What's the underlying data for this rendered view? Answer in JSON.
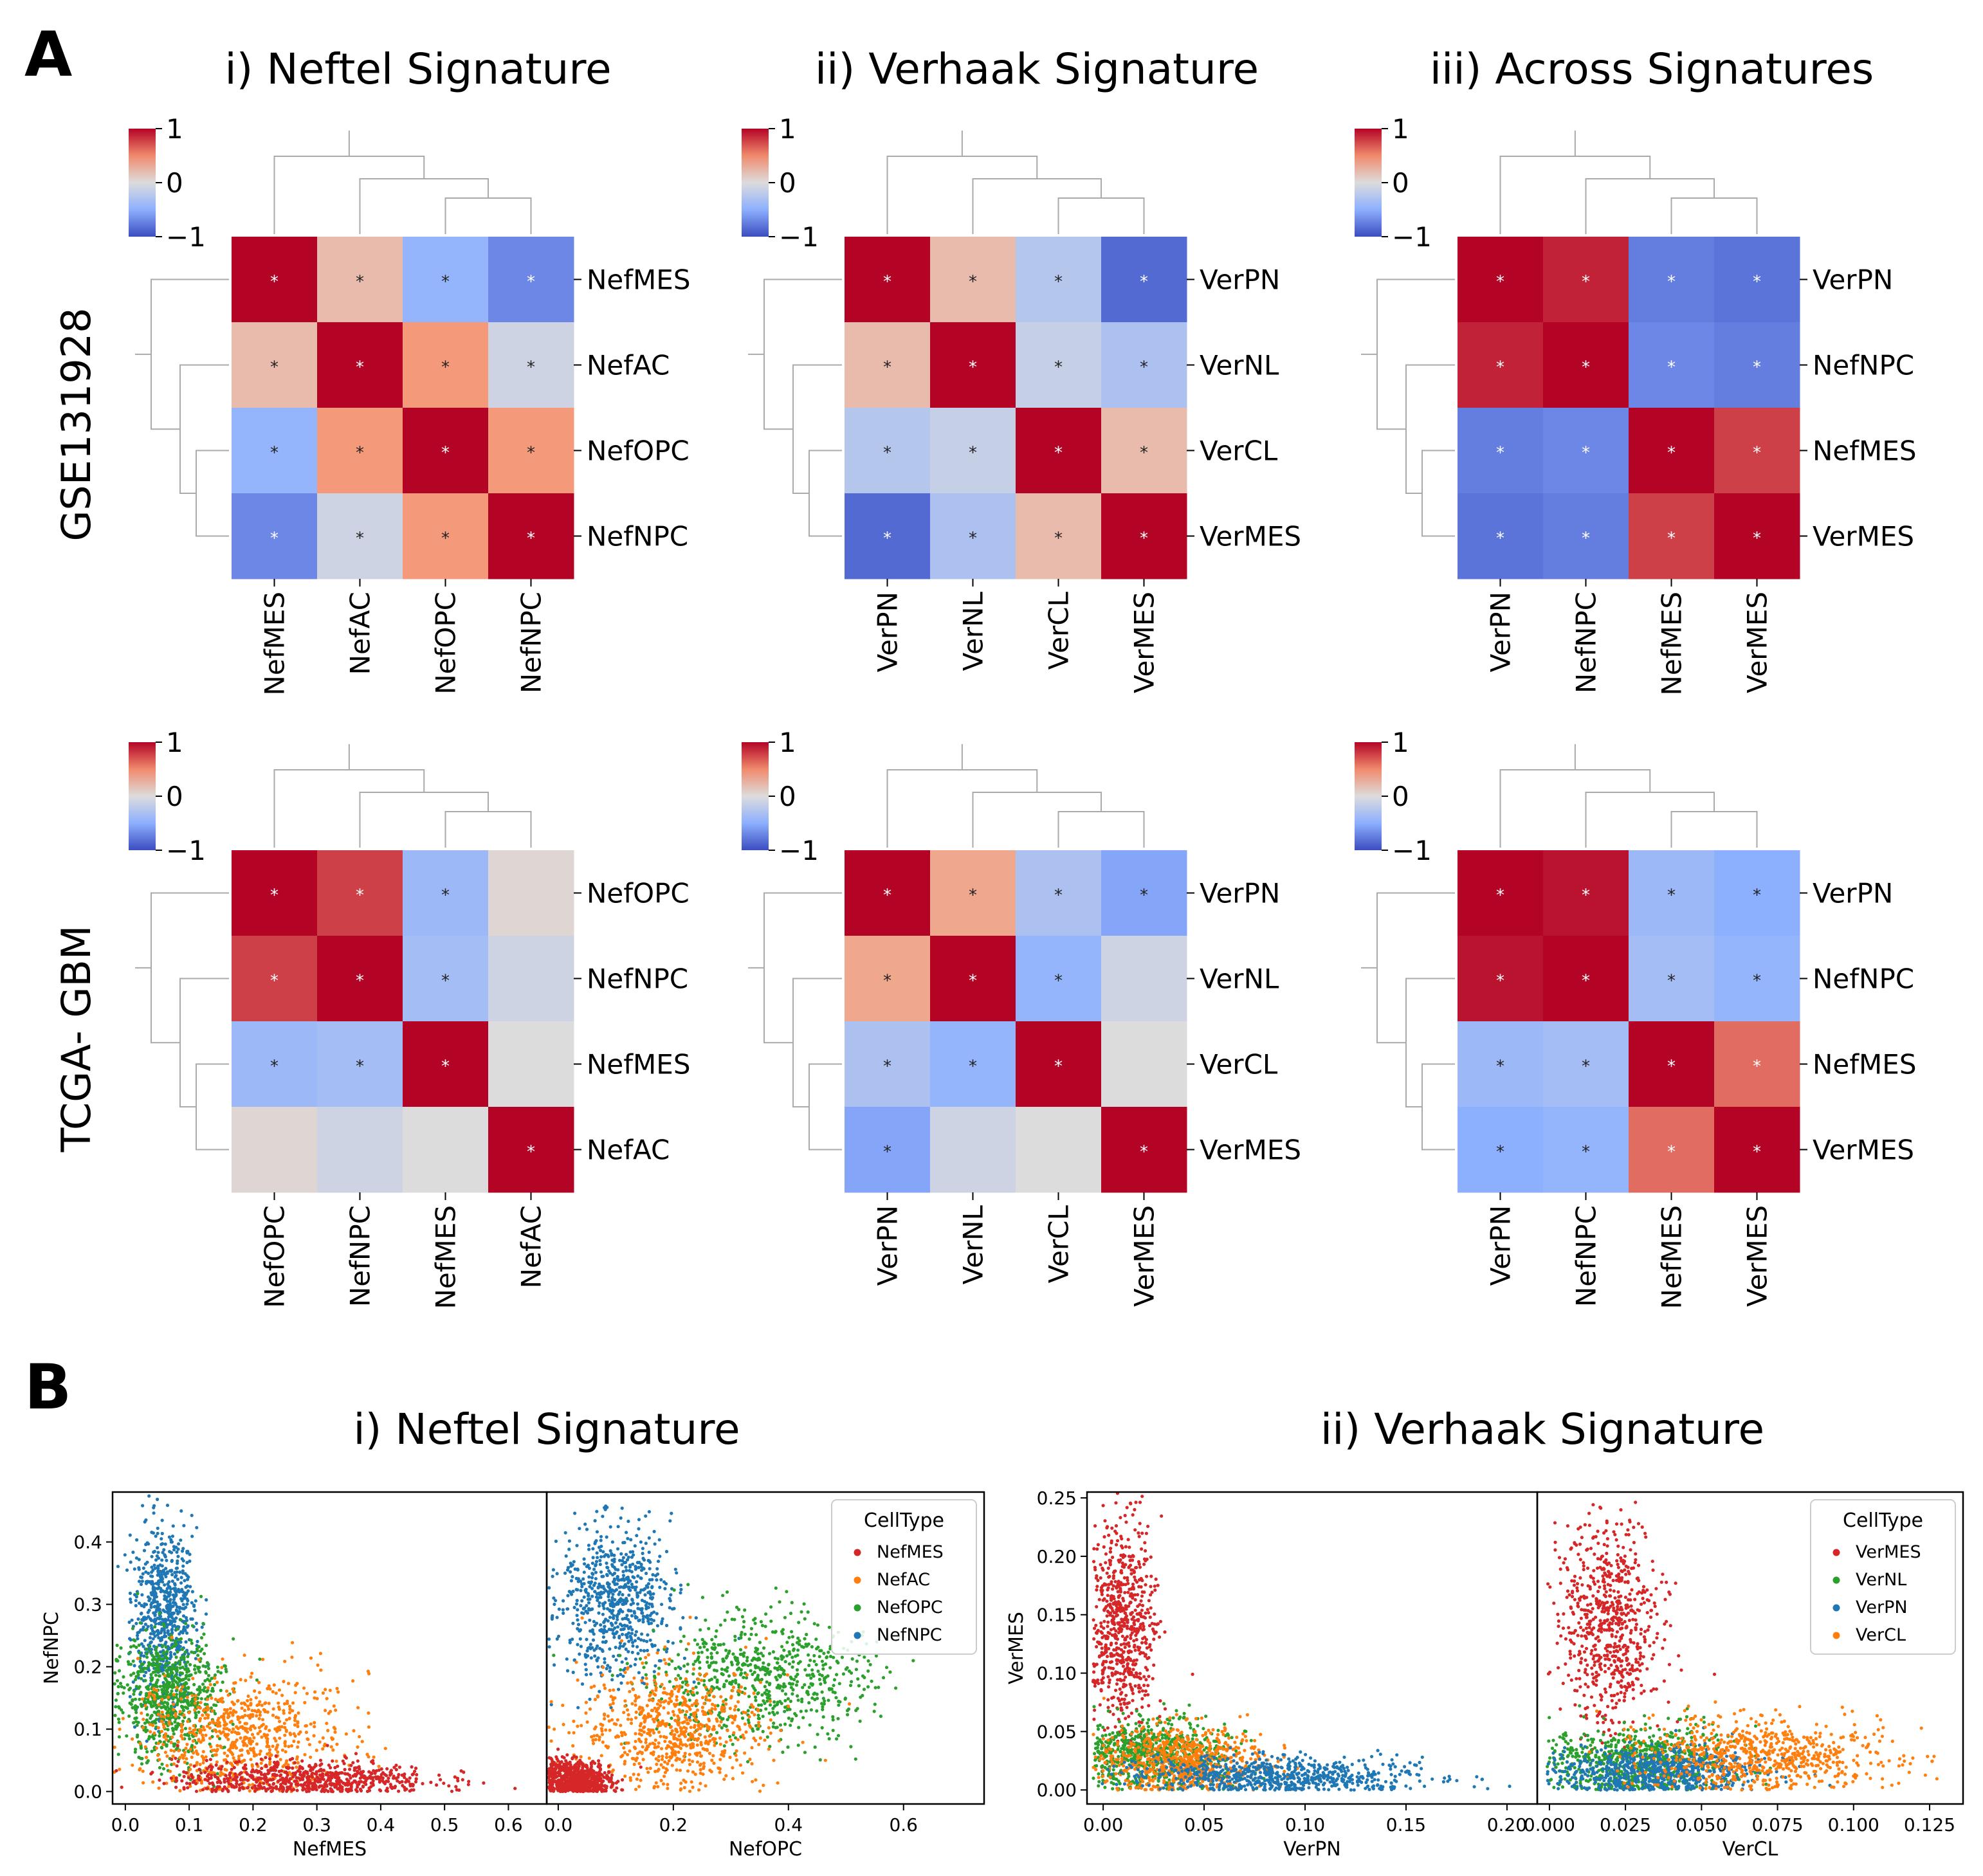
{
  "panel_labels": {
    "a": "A",
    "b": "B"
  },
  "section_a": {
    "col_titles": [
      "i) Neftel Signature",
      "ii) Verhaak Signature",
      "iii) Across Signatures"
    ],
    "row_labels": [
      "GSE131928",
      "TCGA- GBM"
    ]
  },
  "section_b": {
    "titles": [
      "i) Neftel Signature",
      "ii) Verhaak Signature"
    ]
  },
  "colors": {
    "red": "#d62728",
    "orange": "#ff7f0e",
    "green": "#2ca02c",
    "blue": "#1f77b4"
  },
  "chart_data": [
    {
      "type": "heatmap",
      "name": "GSE131928 Neftel",
      "labels": [
        "NefMES",
        "NefAC",
        "NefOPC",
        "NefNPC"
      ],
      "values": [
        [
          1,
          0.25,
          -0.45,
          -0.7
        ],
        [
          0.25,
          1,
          0.5,
          -0.1
        ],
        [
          -0.45,
          0.5,
          1,
          0.5
        ],
        [
          -0.7,
          -0.1,
          0.5,
          1
        ]
      ],
      "stars": [
        [
          1,
          1,
          1,
          1
        ],
        [
          1,
          1,
          1,
          1
        ],
        [
          1,
          1,
          1,
          1
        ],
        [
          1,
          1,
          1,
          1
        ]
      ],
      "vmin": -1,
      "vmax": 1,
      "colorbar_ticks": [
        "1",
        "0",
        "−1"
      ]
    },
    {
      "type": "heatmap",
      "name": "GSE131928 Verhaak",
      "labels": [
        "VerPN",
        "VerNL",
        "VerCL",
        "VerMES"
      ],
      "values": [
        [
          1,
          0.25,
          -0.25,
          -0.85
        ],
        [
          0.25,
          1,
          -0.15,
          -0.3
        ],
        [
          -0.25,
          -0.15,
          1,
          0.25
        ],
        [
          -0.85,
          -0.3,
          0.25,
          1
        ]
      ],
      "stars": [
        [
          1,
          1,
          1,
          1
        ],
        [
          1,
          1,
          1,
          1
        ],
        [
          1,
          1,
          1,
          1
        ],
        [
          1,
          1,
          1,
          1
        ]
      ],
      "vmin": -1,
      "vmax": 1,
      "colorbar_ticks": [
        "1",
        "0",
        "−1"
      ]
    },
    {
      "type": "heatmap",
      "name": "GSE131928 Across",
      "labels": [
        "VerPN",
        "NefNPC",
        "NefMES",
        "VerMES"
      ],
      "values": [
        [
          1,
          0.9,
          -0.75,
          -0.8
        ],
        [
          0.9,
          1,
          -0.7,
          -0.75
        ],
        [
          -0.75,
          -0.7,
          1,
          0.8
        ],
        [
          -0.8,
          -0.75,
          0.8,
          1
        ]
      ],
      "stars": [
        [
          1,
          1,
          1,
          1
        ],
        [
          1,
          1,
          1,
          1
        ],
        [
          1,
          1,
          1,
          1
        ],
        [
          1,
          1,
          1,
          1
        ]
      ],
      "vmin": -1,
      "vmax": 1,
      "colorbar_ticks": [
        "1",
        "0",
        "−1"
      ]
    },
    {
      "type": "heatmap",
      "name": "TCGA-GBM Neftel",
      "labels": [
        "NefOPC",
        "NefNPC",
        "NefMES",
        "NefAC"
      ],
      "values": [
        [
          1,
          0.8,
          -0.4,
          0.05
        ],
        [
          0.8,
          1,
          -0.35,
          -0.1
        ],
        [
          -0.4,
          -0.35,
          1,
          0
        ],
        [
          0.05,
          -0.1,
          0,
          1
        ]
      ],
      "stars": [
        [
          1,
          1,
          1,
          0
        ],
        [
          1,
          1,
          1,
          0
        ],
        [
          1,
          1,
          1,
          0
        ],
        [
          0,
          0,
          0,
          1
        ]
      ],
      "vmin": -1,
      "vmax": 1,
      "colorbar_ticks": [
        "1",
        "0",
        "−1"
      ]
    },
    {
      "type": "heatmap",
      "name": "TCGA-GBM Verhaak",
      "labels": [
        "VerPN",
        "VerNL",
        "VerCL",
        "VerMES"
      ],
      "values": [
        [
          1,
          0.4,
          -0.3,
          -0.55
        ],
        [
          0.4,
          1,
          -0.45,
          -0.1
        ],
        [
          -0.3,
          -0.45,
          1,
          0
        ],
        [
          -0.55,
          -0.1,
          0,
          1
        ]
      ],
      "stars": [
        [
          1,
          1,
          1,
          1
        ],
        [
          1,
          1,
          1,
          0
        ],
        [
          1,
          1,
          1,
          0
        ],
        [
          1,
          0,
          0,
          1
        ]
      ],
      "vmin": -1,
      "vmax": 1,
      "colorbar_ticks": [
        "1",
        "0",
        "−1"
      ]
    },
    {
      "type": "heatmap",
      "name": "TCGA-GBM Across",
      "labels": [
        "VerPN",
        "NefNPC",
        "NefMES",
        "VerMES"
      ],
      "values": [
        [
          1,
          0.95,
          -0.4,
          -0.5
        ],
        [
          0.95,
          1,
          -0.35,
          -0.45
        ],
        [
          -0.4,
          -0.35,
          1,
          0.65
        ],
        [
          -0.5,
          -0.45,
          0.65,
          1
        ]
      ],
      "stars": [
        [
          1,
          1,
          1,
          1
        ],
        [
          1,
          1,
          1,
          1
        ],
        [
          1,
          1,
          1,
          1
        ],
        [
          1,
          1,
          1,
          1
        ]
      ],
      "vmin": -1,
      "vmax": 1,
      "colorbar_ticks": [
        "1",
        "0",
        "−1"
      ]
    },
    {
      "type": "scatter",
      "name": "Neftel NefNPC vs NefMES",
      "xlabel": "NefMES",
      "ylabel": "NefNPC",
      "xlim": [
        -0.02,
        0.66
      ],
      "ylim": [
        -0.02,
        0.48
      ],
      "xticks": [
        "0.0",
        "0.1",
        "0.2",
        "0.3",
        "0.4",
        "0.5",
        "0.6"
      ],
      "yticks": [
        "0.0",
        "0.1",
        "0.2",
        "0.3",
        "0.4"
      ],
      "clusters": [
        {
          "series": "NefNPC",
          "x_mean": 0.06,
          "x_sd": 0.025,
          "y_mean": 0.28,
          "y_sd": 0.07
        },
        {
          "series": "NefOPC",
          "x_mean": 0.07,
          "x_sd": 0.04,
          "y_mean": 0.15,
          "y_sd": 0.05
        },
        {
          "series": "NefAC",
          "x_mean": 0.18,
          "x_sd": 0.08,
          "y_mean": 0.09,
          "y_sd": 0.05
        },
        {
          "series": "NefMES",
          "x_mean": 0.28,
          "x_sd": 0.1,
          "y_mean": 0.02,
          "y_sd": 0.015
        }
      ]
    },
    {
      "type": "scatter",
      "name": "Neftel NefNPC vs NefOPC",
      "xlabel": "NefOPC",
      "ylabel": "",
      "xlim": [
        -0.02,
        0.74
      ],
      "ylim": [
        -0.02,
        0.48
      ],
      "xticks": [
        "0.0",
        "0.2",
        "0.4",
        "0.6"
      ],
      "yticks": [],
      "legend": {
        "title": "CellType",
        "entries": [
          "NefMES",
          "NefAC",
          "NefOPC",
          "NefNPC"
        ],
        "placement": "top-right"
      },
      "clusters": [
        {
          "series": "NefNPC",
          "x_mean": 0.1,
          "x_sd": 0.05,
          "y_mean": 0.3,
          "y_sd": 0.06
        },
        {
          "series": "NefOPC",
          "x_mean": 0.35,
          "x_sd": 0.1,
          "y_mean": 0.18,
          "y_sd": 0.05
        },
        {
          "series": "NefAC",
          "x_mean": 0.2,
          "x_sd": 0.08,
          "y_mean": 0.1,
          "y_sd": 0.05
        },
        {
          "series": "NefMES",
          "x_mean": 0.03,
          "x_sd": 0.03,
          "y_mean": 0.02,
          "y_sd": 0.015
        }
      ]
    },
    {
      "type": "scatter",
      "name": "Verhaak VerMES vs VerPN",
      "xlabel": "VerPN",
      "ylabel": "VerMES",
      "xlim": [
        -0.008,
        0.215
      ],
      "ylim": [
        -0.012,
        0.255
      ],
      "xticks": [
        "0.00",
        "0.05",
        "0.10",
        "0.15",
        "0.20"
      ],
      "yticks": [
        "0.00",
        "0.05",
        "0.10",
        "0.15",
        "0.20",
        "0.25"
      ],
      "clusters": [
        {
          "series": "VerMES",
          "x_mean": 0.01,
          "x_sd": 0.008,
          "y_mean": 0.14,
          "y_sd": 0.045
        },
        {
          "series": "VerNL",
          "x_mean": 0.025,
          "x_sd": 0.018,
          "y_mean": 0.03,
          "y_sd": 0.015
        },
        {
          "series": "VerCL",
          "x_mean": 0.04,
          "x_sd": 0.02,
          "y_mean": 0.025,
          "y_sd": 0.015
        },
        {
          "series": "VerPN",
          "x_mean": 0.09,
          "x_sd": 0.035,
          "y_mean": 0.012,
          "y_sd": 0.008
        }
      ]
    },
    {
      "type": "scatter",
      "name": "Verhaak VerMES vs VerCL",
      "xlabel": "VerCL",
      "ylabel": "",
      "xlim": [
        -0.004,
        0.136
      ],
      "ylim": [
        -0.012,
        0.255
      ],
      "xticks": [
        "0.000",
        "0.025",
        "0.050",
        "0.075",
        "0.100",
        "0.125"
      ],
      "yticks": [],
      "legend": {
        "title": "CellType",
        "entries": [
          "VerMES",
          "VerNL",
          "VerPN",
          "VerCL"
        ],
        "placement": "top-right"
      },
      "clusters": [
        {
          "series": "VerMES",
          "x_mean": 0.02,
          "x_sd": 0.008,
          "y_mean": 0.14,
          "y_sd": 0.045
        },
        {
          "series": "VerNL",
          "x_mean": 0.03,
          "x_sd": 0.015,
          "y_mean": 0.025,
          "y_sd": 0.015
        },
        {
          "series": "VerPN",
          "x_mean": 0.035,
          "x_sd": 0.018,
          "y_mean": 0.015,
          "y_sd": 0.01
        },
        {
          "series": "VerCL",
          "x_mean": 0.07,
          "x_sd": 0.02,
          "y_mean": 0.03,
          "y_sd": 0.015
        }
      ]
    }
  ],
  "series_colors": {
    "NefMES": "#d62728",
    "NefAC": "#ff7f0e",
    "NefOPC": "#2ca02c",
    "NefNPC": "#1f77b4",
    "VerMES": "#d62728",
    "VerNL": "#2ca02c",
    "VerPN": "#1f77b4",
    "VerCL": "#ff7f0e"
  }
}
